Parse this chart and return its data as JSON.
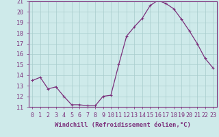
{
  "hours": [
    0,
    1,
    2,
    3,
    4,
    5,
    6,
    7,
    8,
    9,
    10,
    11,
    12,
    13,
    14,
    15,
    16,
    17,
    18,
    19,
    20,
    21,
    22,
    23
  ],
  "windchill": [
    13.5,
    13.8,
    12.7,
    12.9,
    12.0,
    11.2,
    11.2,
    11.1,
    11.1,
    12.0,
    12.1,
    15.0,
    17.7,
    18.6,
    19.4,
    20.6,
    21.1,
    20.8,
    20.3,
    19.3,
    18.2,
    17.0,
    15.6,
    14.7
  ],
  "ylim": [
    11,
    21
  ],
  "yticks": [
    11,
    12,
    13,
    14,
    15,
    16,
    17,
    18,
    19,
    20,
    21
  ],
  "xticks": [
    0,
    1,
    2,
    3,
    4,
    5,
    6,
    7,
    8,
    9,
    10,
    11,
    12,
    13,
    14,
    15,
    16,
    17,
    18,
    19,
    20,
    21,
    22,
    23
  ],
  "line_color": "#7b2f7b",
  "marker": "+",
  "marker_size": 3.5,
  "bg_color": "#ceeaea",
  "grid_color": "#a8cccc",
  "xlabel": "Windchill (Refroidissement éolien,°C)",
  "xlabel_fontsize": 6.5,
  "tick_fontsize": 6.0,
  "linewidth": 0.9
}
